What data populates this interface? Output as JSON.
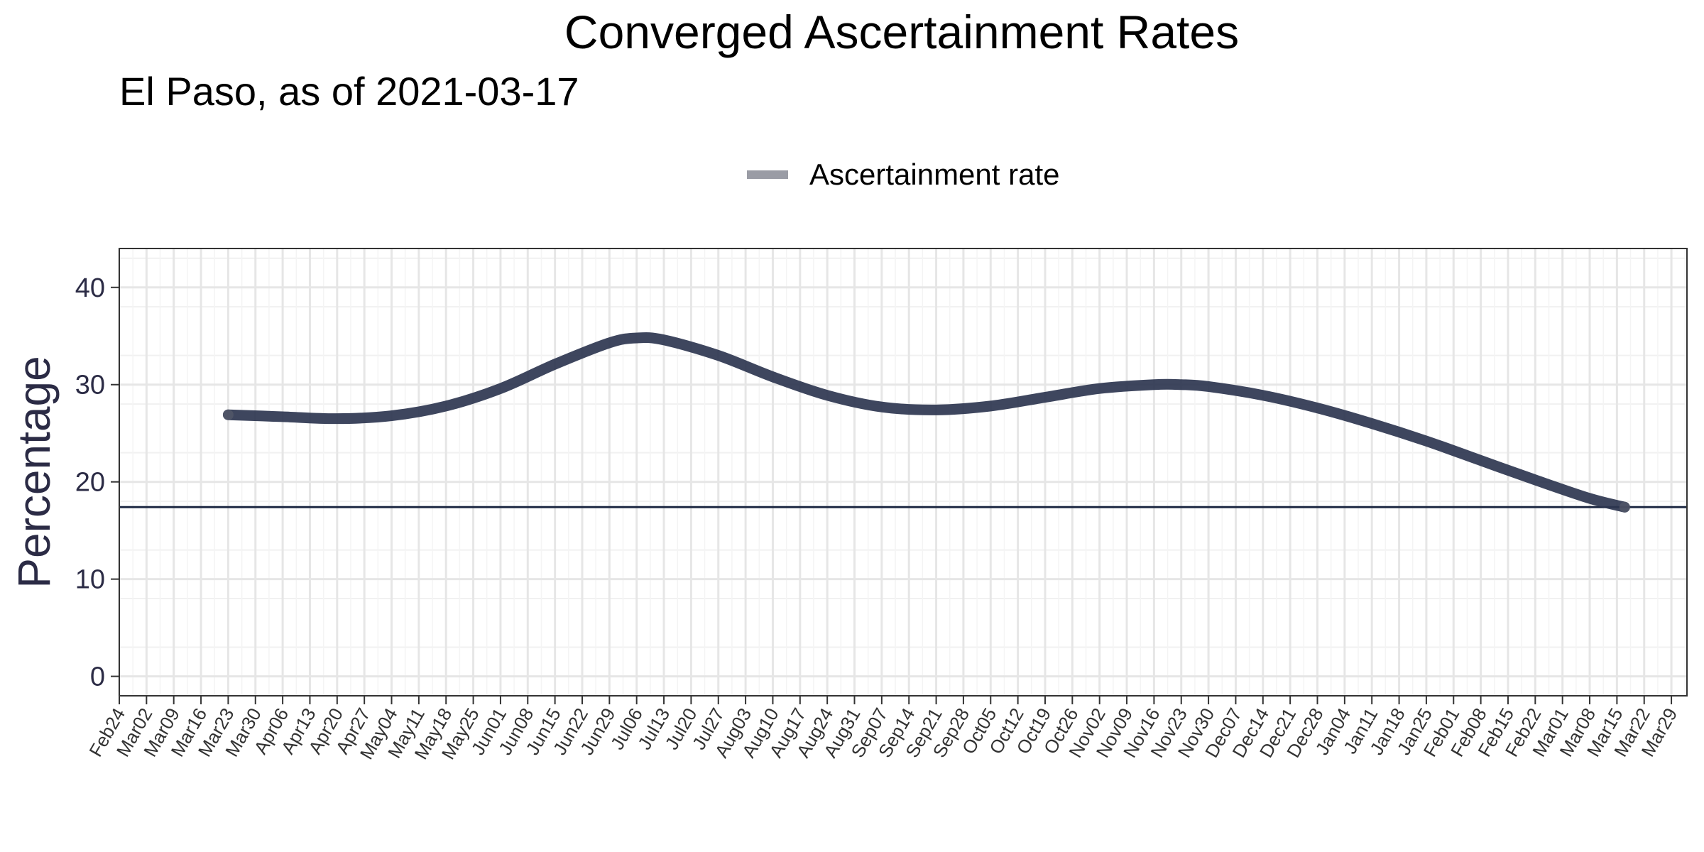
{
  "chart_data": {
    "type": "line",
    "title": "Converged Ascertainment Rates",
    "subtitle": "El Paso, as of 2021-03-17",
    "xlabel": "",
    "ylabel": "Percentage",
    "legend_position": "top-center",
    "grid": true,
    "x_range": [
      "2020-02-24",
      "2021-04-02"
    ],
    "ylim": [
      -2,
      44
    ],
    "y_ticks": [
      0,
      10,
      20,
      30,
      40
    ],
    "x_tick_labels": [
      "Feb24",
      "Mar02",
      "Mar09",
      "Mar16",
      "Mar23",
      "Mar30",
      "Apr06",
      "Apr13",
      "Apr20",
      "Apr27",
      "May04",
      "May11",
      "May18",
      "May25",
      "Jun01",
      "Jun08",
      "Jun15",
      "Jun22",
      "Jun29",
      "Jul06",
      "Jul13",
      "Jul20",
      "Jul27",
      "Aug03",
      "Aug10",
      "Aug17",
      "Aug24",
      "Aug31",
      "Sep07",
      "Sep14",
      "Sep21",
      "Sep28",
      "Oct05",
      "Oct12",
      "Oct19",
      "Oct26",
      "Nov02",
      "Nov09",
      "Nov16",
      "Nov23",
      "Nov30",
      "Dec07",
      "Dec14",
      "Dec21",
      "Dec28",
      "Jan04",
      "Jan11",
      "Jan18",
      "Jan25",
      "Feb01",
      "Feb08",
      "Feb15",
      "Feb22",
      "Mar01",
      "Mar08",
      "Mar15",
      "Mar22",
      "Mar29"
    ],
    "x_tick_dates": [
      "2020-02-24",
      "2020-03-02",
      "2020-03-09",
      "2020-03-16",
      "2020-03-23",
      "2020-03-30",
      "2020-04-06",
      "2020-04-13",
      "2020-04-20",
      "2020-04-27",
      "2020-05-04",
      "2020-05-11",
      "2020-05-18",
      "2020-05-25",
      "2020-06-01",
      "2020-06-08",
      "2020-06-15",
      "2020-06-22",
      "2020-06-29",
      "2020-07-06",
      "2020-07-13",
      "2020-07-20",
      "2020-07-27",
      "2020-08-03",
      "2020-08-10",
      "2020-08-17",
      "2020-08-24",
      "2020-08-31",
      "2020-09-07",
      "2020-09-14",
      "2020-09-21",
      "2020-09-28",
      "2020-10-05",
      "2020-10-12",
      "2020-10-19",
      "2020-10-26",
      "2020-11-02",
      "2020-11-09",
      "2020-11-16",
      "2020-11-23",
      "2020-11-30",
      "2020-12-07",
      "2020-12-14",
      "2020-12-21",
      "2020-12-28",
      "2021-01-04",
      "2021-01-11",
      "2021-01-18",
      "2021-01-25",
      "2021-02-01",
      "2021-02-08",
      "2021-02-15",
      "2021-02-22",
      "2021-03-01",
      "2021-03-08",
      "2021-03-15",
      "2021-03-22",
      "2021-03-29"
    ],
    "series": [
      {
        "name": "Ascertainment rate",
        "color": "#2e3650",
        "legend_color": "#9a9ca5",
        "x": [
          "2020-03-23",
          "2020-04-06",
          "2020-04-20",
          "2020-05-04",
          "2020-05-18",
          "2020-06-01",
          "2020-06-15",
          "2020-06-29",
          "2020-07-06",
          "2020-07-13",
          "2020-07-27",
          "2020-08-10",
          "2020-08-24",
          "2020-09-07",
          "2020-09-21",
          "2020-10-05",
          "2020-10-19",
          "2020-11-02",
          "2020-11-16",
          "2020-11-23",
          "2020-11-30",
          "2020-12-14",
          "2020-12-28",
          "2021-01-11",
          "2021-01-25",
          "2021-02-08",
          "2021-02-22",
          "2021-03-08",
          "2021-03-17"
        ],
        "values": [
          26.9,
          26.7,
          26.5,
          26.8,
          27.8,
          29.6,
          32.1,
          34.3,
          34.8,
          34.6,
          33.0,
          30.8,
          28.9,
          27.7,
          27.4,
          27.8,
          28.7,
          29.6,
          30.0,
          30.0,
          29.8,
          28.9,
          27.6,
          26.0,
          24.2,
          22.2,
          20.2,
          18.3,
          17.4
        ]
      }
    ],
    "reference_line": {
      "y": 17.4,
      "color": "#1f2a44"
    }
  }
}
